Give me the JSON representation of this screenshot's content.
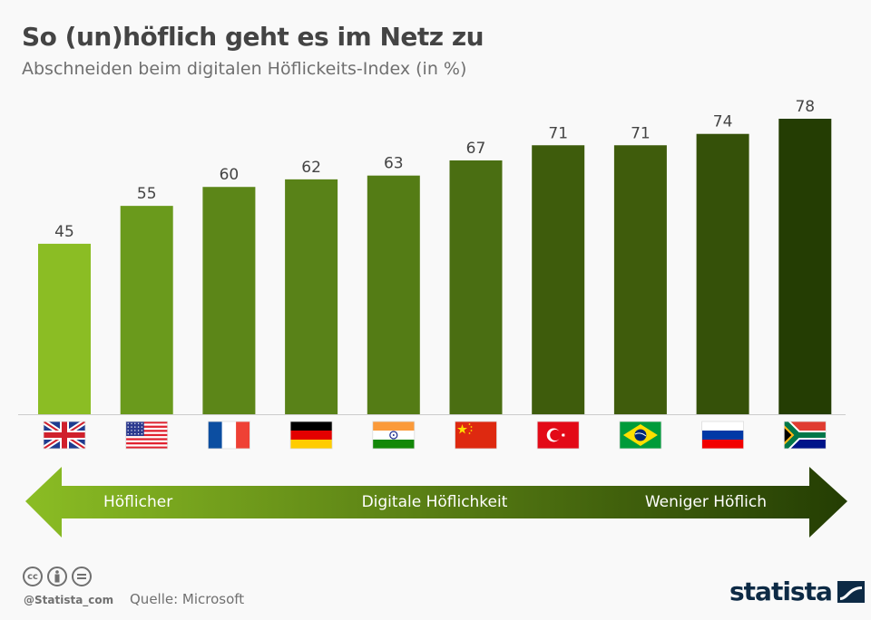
{
  "header": {
    "title": "So (un)höflich geht es im Netz zu",
    "subtitle": "Abschneiden beim digitalen Höflickeits-Index (in %)"
  },
  "chart_data": {
    "type": "bar",
    "title": "So (un)höflich geht es im Netz zu",
    "subtitle": "Abschneiden beim digitalen Höflickeits-Index (in %)",
    "xlabel": "",
    "ylabel": "",
    "categories": [
      "Großbritannien",
      "USA",
      "Frankreich",
      "Deutschland",
      "Indien",
      "China",
      "Türkei",
      "Brasilien",
      "Russland",
      "Südafrika"
    ],
    "category_flags": [
      "uk",
      "us",
      "fr",
      "de",
      "in",
      "cn",
      "tr",
      "br",
      "ru",
      "za"
    ],
    "values": [
      45,
      55,
      60,
      62,
      63,
      67,
      71,
      71,
      74,
      78
    ],
    "bar_colors": [
      "#8bbd24",
      "#6a9a1c",
      "#5c8618",
      "#598218",
      "#547c15",
      "#4a6e12",
      "#3e5c0c",
      "#3f5c0c",
      "#355109",
      "#243d03"
    ],
    "ylim": [
      0,
      80
    ],
    "grid": false,
    "data_labels": true
  },
  "arrow": {
    "left_label": "Höflicher",
    "center_label": "Digitale Höflichkeit",
    "right_label": "Weniger Höflich",
    "color_start": "#8bbd24",
    "color_end": "#243d03"
  },
  "footer": {
    "handle": "@Statista_com",
    "source": "Quelle: Microsoft",
    "logo_text": "statista",
    "cc_icons": [
      "cc-icon",
      "by-icon",
      "nd-icon"
    ]
  }
}
